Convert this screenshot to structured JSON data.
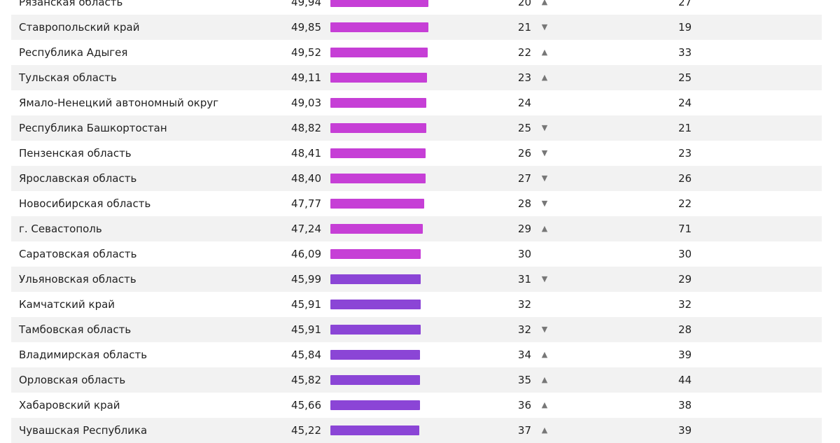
{
  "colors": {
    "magenta": "#c63fd6",
    "violet": "#8b45d6",
    "row_shade": "#f2f2f2",
    "arrow": "#777777"
  },
  "icons": {
    "up": "▲",
    "down": "▼",
    "up_name": "triangle-up-icon",
    "down_name": "triangle-down-icon"
  },
  "chart_data": {
    "type": "table",
    "columns": [
      "region",
      "score",
      "rank",
      "trend",
      "previous_rank"
    ],
    "bar_scale_max": 100,
    "rows": [
      {
        "name": "Рязанская область",
        "score": "49,94",
        "value": 49.94,
        "rank": "20",
        "trend": "up",
        "prev": "27",
        "color": "magenta"
      },
      {
        "name": "Ставропольский край",
        "score": "49,85",
        "value": 49.85,
        "rank": "21",
        "trend": "down",
        "prev": "19",
        "color": "magenta"
      },
      {
        "name": "Республика Адыгея",
        "score": "49,52",
        "value": 49.52,
        "rank": "22",
        "trend": "up",
        "prev": "33",
        "color": "magenta"
      },
      {
        "name": "Тульская область",
        "score": "49,11",
        "value": 49.11,
        "rank": "23",
        "trend": "up",
        "prev": "25",
        "color": "magenta"
      },
      {
        "name": "Ямало-Ненецкий автономный округ",
        "score": "49,03",
        "value": 49.03,
        "rank": "24",
        "trend": "",
        "prev": "24",
        "color": "magenta"
      },
      {
        "name": "Республика Башкортостан",
        "score": "48,82",
        "value": 48.82,
        "rank": "25",
        "trend": "down",
        "prev": "21",
        "color": "magenta"
      },
      {
        "name": "Пензенская область",
        "score": "48,41",
        "value": 48.41,
        "rank": "26",
        "trend": "down",
        "prev": "23",
        "color": "magenta"
      },
      {
        "name": "Ярославская область",
        "score": "48,40",
        "value": 48.4,
        "rank": "27",
        "trend": "down",
        "prev": "26",
        "color": "magenta"
      },
      {
        "name": "Новосибирская область",
        "score": "47,77",
        "value": 47.77,
        "rank": "28",
        "trend": "down",
        "prev": "22",
        "color": "magenta"
      },
      {
        "name": "г. Севастополь",
        "score": "47,24",
        "value": 47.24,
        "rank": "29",
        "trend": "up",
        "prev": "71",
        "color": "magenta"
      },
      {
        "name": "Саратовская область",
        "score": "46,09",
        "value": 46.09,
        "rank": "30",
        "trend": "",
        "prev": "30",
        "color": "magenta"
      },
      {
        "name": "Ульяновская область",
        "score": "45,99",
        "value": 45.99,
        "rank": "31",
        "trend": "down",
        "prev": "29",
        "color": "violet"
      },
      {
        "name": "Камчатский край",
        "score": "45,91",
        "value": 45.91,
        "rank": "32",
        "trend": "",
        "prev": "32",
        "color": "violet"
      },
      {
        "name": "Тамбовская область",
        "score": "45,91",
        "value": 45.91,
        "rank": "32",
        "trend": "down",
        "prev": "28",
        "color": "violet"
      },
      {
        "name": "Владимирская область",
        "score": "45,84",
        "value": 45.84,
        "rank": "34",
        "trend": "up",
        "prev": "39",
        "color": "violet"
      },
      {
        "name": "Орловская область",
        "score": "45,82",
        "value": 45.82,
        "rank": "35",
        "trend": "up",
        "prev": "44",
        "color": "violet"
      },
      {
        "name": "Хабаровский край",
        "score": "45,66",
        "value": 45.66,
        "rank": "36",
        "trend": "up",
        "prev": "38",
        "color": "violet"
      },
      {
        "name": "Чувашская Республика",
        "score": "45,22",
        "value": 45.22,
        "rank": "37",
        "trend": "up",
        "prev": "39",
        "color": "violet"
      }
    ]
  }
}
